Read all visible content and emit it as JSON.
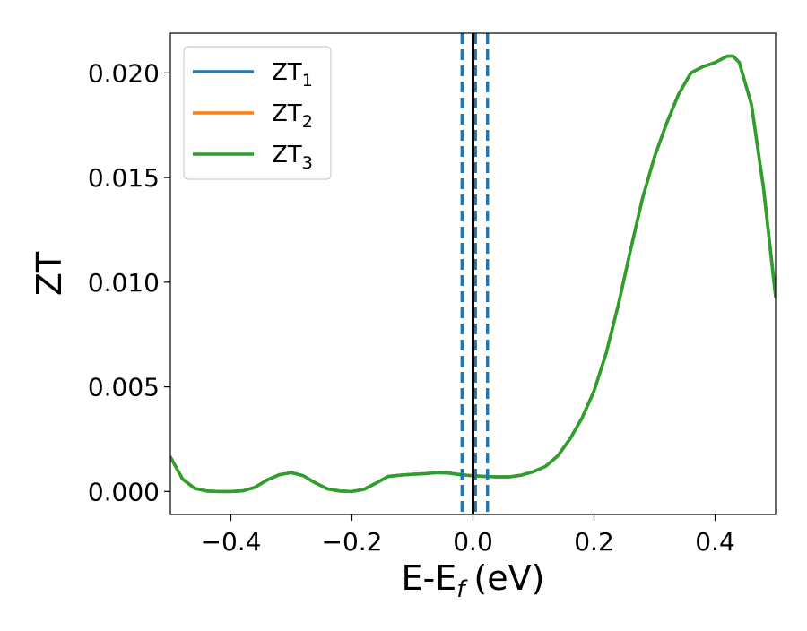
{
  "chart_data": {
    "type": "line",
    "title": "",
    "xlabel": "E-E",
    "xlabel_sub": "f",
    "xlabel_unit": "(eV)",
    "ylabel": "ZT",
    "xlim": [
      -0.5,
      0.5
    ],
    "ylim": [
      -0.0011,
      0.0219
    ],
    "xticks": [
      -0.4,
      -0.2,
      0.0,
      0.2,
      0.4
    ],
    "xtick_labels": [
      "−0.4",
      "−0.2",
      "0.0",
      "0.2",
      "0.4"
    ],
    "yticks": [
      0.0,
      0.005,
      0.01,
      0.015,
      0.02
    ],
    "ytick_labels": [
      "0.000",
      "0.005",
      "0.010",
      "0.015",
      "0.020"
    ],
    "grid": false,
    "legend_position": "top-left",
    "x": [
      -0.5,
      -0.48,
      -0.46,
      -0.44,
      -0.42,
      -0.4,
      -0.38,
      -0.36,
      -0.34,
      -0.32,
      -0.3,
      -0.28,
      -0.26,
      -0.24,
      -0.22,
      -0.2,
      -0.18,
      -0.16,
      -0.14,
      -0.12,
      -0.1,
      -0.08,
      -0.06,
      -0.04,
      -0.02,
      0.0,
      0.02,
      0.04,
      0.06,
      0.08,
      0.1,
      0.12,
      0.14,
      0.16,
      0.18,
      0.2,
      0.22,
      0.24,
      0.26,
      0.28,
      0.3,
      0.32,
      0.34,
      0.36,
      0.38,
      0.4,
      0.42,
      0.43,
      0.44,
      0.46,
      0.48,
      0.5
    ],
    "series": [
      {
        "name": "ZT",
        "sub": "1",
        "color": "#1f77b4",
        "values": [
          0.00165,
          0.0006,
          0.00015,
          2e-05,
          0.0,
          0.0,
          3e-05,
          0.0002,
          0.00055,
          0.0008,
          0.0009,
          0.00075,
          0.0004,
          0.00012,
          2e-05,
          0.0,
          0.0001,
          0.0004,
          0.00072,
          0.00078,
          0.00082,
          0.00085,
          0.0009,
          0.00088,
          0.0008,
          0.00075,
          0.00072,
          0.0007,
          0.0007,
          0.00078,
          0.00095,
          0.0012,
          0.0017,
          0.0025,
          0.0035,
          0.0048,
          0.0066,
          0.0089,
          0.0115,
          0.014,
          0.016,
          0.0176,
          0.019,
          0.02,
          0.0203,
          0.0205,
          0.0208,
          0.0208,
          0.0205,
          0.0185,
          0.0145,
          0.0093
        ]
      },
      {
        "name": "ZT",
        "sub": "2",
        "color": "#ff7f0e",
        "values": [
          0.00165,
          0.0006,
          0.00015,
          2e-05,
          0.0,
          0.0,
          3e-05,
          0.0002,
          0.00055,
          0.0008,
          0.0009,
          0.00075,
          0.0004,
          0.00012,
          2e-05,
          0.0,
          0.0001,
          0.0004,
          0.00072,
          0.00078,
          0.00082,
          0.00085,
          0.0009,
          0.00088,
          0.0008,
          0.00075,
          0.00072,
          0.0007,
          0.0007,
          0.00078,
          0.00095,
          0.0012,
          0.0017,
          0.0025,
          0.0035,
          0.0048,
          0.0066,
          0.0089,
          0.0115,
          0.014,
          0.016,
          0.0176,
          0.019,
          0.02,
          0.0203,
          0.0205,
          0.0208,
          0.0208,
          0.0205,
          0.0185,
          0.0145,
          0.0093
        ]
      },
      {
        "name": "ZT",
        "sub": "3",
        "color": "#2ca02c",
        "values": [
          0.00165,
          0.0006,
          0.00015,
          2e-05,
          0.0,
          0.0,
          3e-05,
          0.0002,
          0.00055,
          0.0008,
          0.0009,
          0.00075,
          0.0004,
          0.00012,
          2e-05,
          0.0,
          0.0001,
          0.0004,
          0.00072,
          0.00078,
          0.00082,
          0.00085,
          0.0009,
          0.00088,
          0.0008,
          0.00075,
          0.00072,
          0.0007,
          0.0007,
          0.00078,
          0.00095,
          0.0012,
          0.0017,
          0.0025,
          0.0035,
          0.0048,
          0.0066,
          0.0089,
          0.0115,
          0.014,
          0.016,
          0.0176,
          0.019,
          0.02,
          0.0203,
          0.0205,
          0.0208,
          0.0208,
          0.0205,
          0.0185,
          0.0145,
          0.0093
        ]
      }
    ],
    "vlines": [
      {
        "x": 0.0,
        "style": "solid",
        "color": "#000000"
      },
      {
        "x": -0.018,
        "style": "dashed",
        "color": "#1f77b4"
      },
      {
        "x": 0.004,
        "style": "dashed",
        "color": "#1f77b4"
      },
      {
        "x": 0.024,
        "style": "dashed",
        "color": "#1f77b4"
      }
    ]
  }
}
